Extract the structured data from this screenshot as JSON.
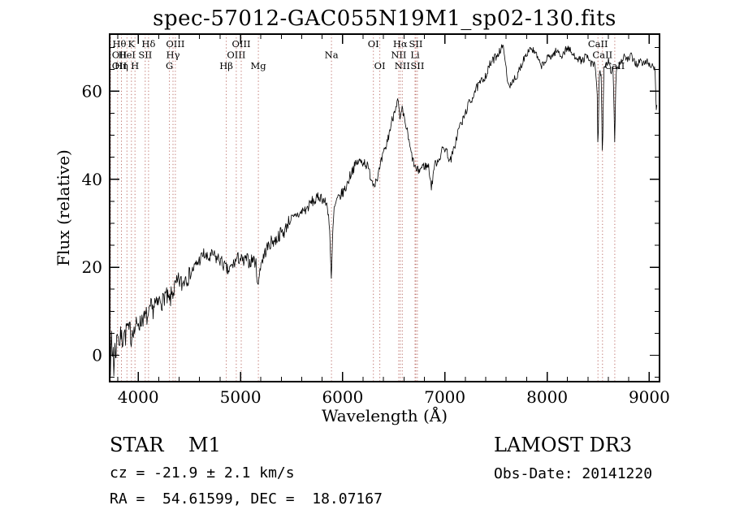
{
  "chart_data": {
    "type": "line",
    "title": "spec-57012-GAC055N19M1_sp02-130.fits",
    "xlabel": "Wavelength (Å)",
    "ylabel": "Flux (relative)",
    "xlim": [
      3720,
      9100
    ],
    "ylim": [
      -6,
      73
    ],
    "x_major_ticks": [
      4000,
      5000,
      6000,
      7000,
      8000,
      9000
    ],
    "x_minor_step": 200,
    "y_major_ticks": [
      0,
      20,
      40,
      60
    ],
    "y_minor_step": 5,
    "grid": false,
    "legend": "none",
    "line_color": "#000000",
    "spectral_line_color": "#b0524a",
    "noise_seed": 7,
    "noise_regions": [
      {
        "range": [
          3720,
          4500
        ],
        "amp": 2.3
      },
      {
        "range": [
          4500,
          5500
        ],
        "amp": 1.5
      },
      {
        "range": [
          5500,
          6500
        ],
        "amp": 1.2
      },
      {
        "range": [
          6500,
          7600
        ],
        "amp": 1.0
      },
      {
        "range": [
          7600,
          9100
        ],
        "amp": 0.9
      }
    ],
    "spectral_lines": [
      {
        "label": "Hθ",
        "wavelength": 3798,
        "row": 1
      },
      {
        "label": "K",
        "wavelength": 3933,
        "row": 1
      },
      {
        "label": "Hδ",
        "wavelength": 4101,
        "row": 1
      },
      {
        "label": "OIII",
        "wavelength": 4363,
        "row": 1
      },
      {
        "label": "OIII",
        "wavelength": 5007,
        "row": 1
      },
      {
        "label": "OI",
        "wavelength": 6300,
        "row": 1
      },
      {
        "label": "Hα",
        "wavelength": 6563,
        "row": 1
      },
      {
        "label": "SII",
        "wavelength": 6716,
        "row": 1
      },
      {
        "label": "CaII",
        "wavelength": 8498,
        "row": 1
      },
      {
        "label": "OII",
        "wavelength": 3727,
        "row": 2
      },
      {
        "label": "HeI",
        "wavelength": 3889,
        "row": 2
      },
      {
        "label": "SII",
        "wavelength": 4068,
        "row": 2
      },
      {
        "label": "Hγ",
        "wavelength": 4340,
        "row": 2
      },
      {
        "label": "OIII",
        "wavelength": 4959,
        "row": 2
      },
      {
        "label": "Na",
        "wavelength": 5890,
        "row": 2
      },
      {
        "label": "NII",
        "wavelength": 6548,
        "row": 2
      },
      {
        "label": "Li",
        "wavelength": 6708,
        "row": 2
      },
      {
        "label": "CaII",
        "wavelength": 8542,
        "row": 2
      },
      {
        "label": "OII",
        "wavelength": 3729,
        "row": 3
      },
      {
        "label": "Hη",
        "wavelength": 3835,
        "row": 3
      },
      {
        "label": "H",
        "wavelength": 3968,
        "row": 3
      },
      {
        "label": "G",
        "wavelength": 4305,
        "row": 3
      },
      {
        "label": "Hβ",
        "wavelength": 4861,
        "row": 3
      },
      {
        "label": "Mg",
        "wavelength": 5175,
        "row": 3
      },
      {
        "label": "OI",
        "wavelength": 6363,
        "row": 3
      },
      {
        "label": "NII",
        "wavelength": 6583,
        "row": 3
      },
      {
        "label": "SII",
        "wavelength": 6731,
        "row": 3
      },
      {
        "label": "CaII",
        "wavelength": 8662,
        "row": 3
      }
    ],
    "spectrum_anchors": [
      [
        3722,
        0
      ],
      [
        3730,
        -4
      ],
      [
        3738,
        5
      ],
      [
        3746,
        -2
      ],
      [
        3754,
        3
      ],
      [
        3762,
        -5
      ],
      [
        3770,
        2
      ],
      [
        3780,
        0
      ],
      [
        3790,
        4
      ],
      [
        3800,
        6
      ],
      [
        3815,
        2
      ],
      [
        3830,
        5
      ],
      [
        3845,
        3
      ],
      [
        3860,
        6
      ],
      [
        3875,
        4
      ],
      [
        3890,
        7
      ],
      [
        3905,
        5
      ],
      [
        3920,
        6
      ],
      [
        3933,
        3
      ],
      [
        3945,
        7
      ],
      [
        3960,
        5
      ],
      [
        3975,
        7
      ],
      [
        3990,
        6
      ],
      [
        4000,
        8
      ],
      [
        4020,
        7
      ],
      [
        4040,
        9
      ],
      [
        4060,
        8
      ],
      [
        4080,
        9
      ],
      [
        4101,
        8
      ],
      [
        4120,
        11
      ],
      [
        4140,
        10
      ],
      [
        4160,
        12
      ],
      [
        4180,
        11
      ],
      [
        4200,
        12
      ],
      [
        4220,
        13
      ],
      [
        4240,
        12
      ],
      [
        4260,
        14
      ],
      [
        4280,
        13
      ],
      [
        4305,
        12
      ],
      [
        4330,
        14
      ],
      [
        4350,
        15
      ],
      [
        4380,
        16
      ],
      [
        4400,
        17
      ],
      [
        4430,
        16
      ],
      [
        4460,
        18
      ],
      [
        4490,
        18
      ],
      [
        4520,
        19
      ],
      [
        4550,
        20
      ],
      [
        4580,
        21
      ],
      [
        4610,
        22
      ],
      [
        4640,
        23
      ],
      [
        4670,
        22
      ],
      [
        4700,
        22
      ],
      [
        4730,
        23
      ],
      [
        4760,
        22
      ],
      [
        4790,
        22
      ],
      [
        4820,
        21
      ],
      [
        4850,
        20
      ],
      [
        4880,
        19
      ],
      [
        4910,
        20
      ],
      [
        4940,
        21
      ],
      [
        4970,
        22
      ],
      [
        5000,
        22
      ],
      [
        5030,
        21
      ],
      [
        5060,
        22
      ],
      [
        5090,
        21
      ],
      [
        5120,
        22
      ],
      [
        5150,
        21
      ],
      [
        5167,
        17
      ],
      [
        5175,
        15
      ],
      [
        5185,
        19
      ],
      [
        5200,
        21
      ],
      [
        5220,
        22
      ],
      [
        5250,
        24
      ],
      [
        5280,
        25
      ],
      [
        5310,
        26
      ],
      [
        5340,
        26
      ],
      [
        5370,
        27
      ],
      [
        5400,
        28
      ],
      [
        5430,
        28
      ],
      [
        5460,
        30
      ],
      [
        5490,
        31
      ],
      [
        5520,
        31
      ],
      [
        5550,
        32
      ],
      [
        5580,
        32
      ],
      [
        5610,
        33
      ],
      [
        5640,
        33
      ],
      [
        5670,
        34
      ],
      [
        5700,
        35
      ],
      [
        5730,
        35
      ],
      [
        5760,
        36
      ],
      [
        5790,
        36
      ],
      [
        5820,
        35
      ],
      [
        5850,
        34
      ],
      [
        5870,
        30
      ],
      [
        5890,
        16
      ],
      [
        5900,
        26
      ],
      [
        5915,
        33
      ],
      [
        5940,
        35
      ],
      [
        5970,
        36
      ],
      [
        6000,
        37
      ],
      [
        6030,
        38
      ],
      [
        6060,
        40
      ],
      [
        6090,
        42
      ],
      [
        6120,
        43
      ],
      [
        6150,
        44
      ],
      [
        6180,
        44
      ],
      [
        6210,
        44
      ],
      [
        6240,
        43
      ],
      [
        6270,
        41
      ],
      [
        6300,
        39
      ],
      [
        6330,
        40
      ],
      [
        6360,
        42
      ],
      [
        6390,
        45
      ],
      [
        6420,
        47
      ],
      [
        6450,
        50
      ],
      [
        6480,
        53
      ],
      [
        6510,
        56
      ],
      [
        6540,
        58
      ],
      [
        6563,
        53
      ],
      [
        6580,
        56
      ],
      [
        6600,
        54
      ],
      [
        6630,
        51
      ],
      [
        6660,
        47
      ],
      [
        6690,
        44
      ],
      [
        6720,
        42
      ],
      [
        6750,
        42
      ],
      [
        6780,
        43
      ],
      [
        6810,
        43
      ],
      [
        6840,
        43
      ],
      [
        6870,
        38
      ],
      [
        6895,
        43
      ],
      [
        6920,
        44
      ],
      [
        6950,
        45
      ],
      [
        6980,
        47
      ],
      [
        7010,
        47
      ],
      [
        7050,
        44
      ],
      [
        7080,
        46
      ],
      [
        7110,
        49
      ],
      [
        7140,
        52
      ],
      [
        7170,
        53
      ],
      [
        7200,
        55
      ],
      [
        7230,
        57
      ],
      [
        7260,
        58
      ],
      [
        7290,
        60
      ],
      [
        7320,
        61
      ],
      [
        7350,
        62
      ],
      [
        7380,
        63
      ],
      [
        7410,
        64
      ],
      [
        7440,
        66
      ],
      [
        7470,
        67
      ],
      [
        7500,
        68
      ],
      [
        7530,
        69
      ],
      [
        7560,
        70
      ],
      [
        7585,
        69
      ],
      [
        7605,
        63
      ],
      [
        7625,
        61
      ],
      [
        7650,
        62
      ],
      [
        7675,
        63
      ],
      [
        7700,
        62
      ],
      [
        7725,
        65
      ],
      [
        7750,
        66
      ],
      [
        7780,
        68
      ],
      [
        7810,
        69
      ],
      [
        7840,
        70
      ],
      [
        7870,
        69
      ],
      [
        7900,
        68
      ],
      [
        7930,
        66
      ],
      [
        7960,
        66
      ],
      [
        7990,
        67
      ],
      [
        8020,
        68
      ],
      [
        8050,
        68
      ],
      [
        8080,
        69
      ],
      [
        8110,
        69
      ],
      [
        8140,
        68
      ],
      [
        8170,
        69
      ],
      [
        8200,
        70
      ],
      [
        8230,
        69
      ],
      [
        8260,
        68
      ],
      [
        8290,
        68
      ],
      [
        8320,
        67
      ],
      [
        8350,
        67
      ],
      [
        8380,
        68
      ],
      [
        8410,
        67
      ],
      [
        8440,
        66
      ],
      [
        8470,
        66
      ],
      [
        8490,
        60
      ],
      [
        8498,
        45
      ],
      [
        8510,
        65
      ],
      [
        8530,
        64
      ],
      [
        8542,
        43
      ],
      [
        8555,
        65
      ],
      [
        8580,
        66
      ],
      [
        8600,
        67
      ],
      [
        8625,
        64
      ],
      [
        8645,
        66
      ],
      [
        8662,
        48
      ],
      [
        8675,
        65
      ],
      [
        8700,
        66
      ],
      [
        8730,
        67
      ],
      [
        8760,
        68
      ],
      [
        8790,
        67
      ],
      [
        8820,
        68
      ],
      [
        8850,
        67
      ],
      [
        8880,
        66
      ],
      [
        8910,
        67
      ],
      [
        8940,
        66
      ],
      [
        8970,
        67
      ],
      [
        9000,
        66
      ],
      [
        9030,
        66
      ],
      [
        9055,
        65
      ],
      [
        9070,
        55
      ],
      [
        9078,
        60
      ]
    ]
  },
  "annotations": {
    "object_label": "STAR    M1",
    "cz_line": "cz = -21.9 ± 2.1 km/s",
    "radec_line": "RA =  54.61599, DEC =  18.07167",
    "survey_label": "LAMOST DR3",
    "obs_date_line": "Obs-Date: 20141220"
  }
}
